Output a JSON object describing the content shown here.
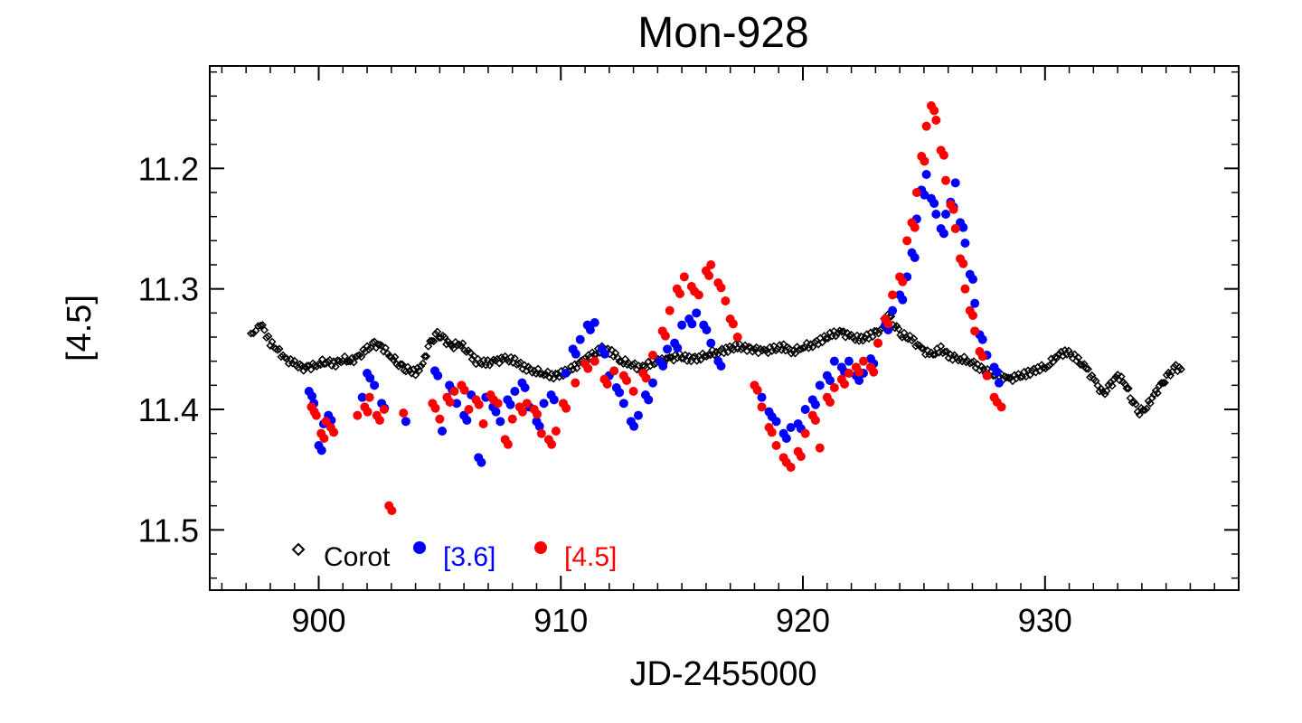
{
  "chart_data": {
    "type": "scatter",
    "title": "Mon-928",
    "xlabel": "JD-2455000",
    "ylabel": "[4.5]",
    "xlim": [
      895.5,
      938
    ],
    "ylim": [
      11.55,
      11.115
    ],
    "x_ticks": [
      900,
      910,
      920,
      930
    ],
    "x_tick_labels": [
      "900",
      "910",
      "920",
      "930"
    ],
    "y_ticks": [
      11.2,
      11.3,
      11.4,
      11.5
    ],
    "y_tick_labels": [
      "11.2",
      "11.3",
      "11.4",
      "11.5"
    ],
    "legend_position": "bottom-left",
    "colors": {
      "corot": "#000000",
      "ch1": "#0000ff",
      "ch2": "#ff0000"
    },
    "series": [
      {
        "name": "Corot",
        "marker": "diamond",
        "points": [
          [
            897.2,
            11.337
          ],
          [
            897.4,
            11.333
          ],
          [
            897.6,
            11.328
          ],
          [
            898.0,
            11.345
          ],
          [
            898.3,
            11.35
          ],
          [
            898.6,
            11.358
          ],
          [
            899.0,
            11.362
          ],
          [
            899.3,
            11.366
          ],
          [
            899.6,
            11.365
          ],
          [
            900.0,
            11.362
          ],
          [
            900.3,
            11.36
          ],
          [
            900.7,
            11.362
          ],
          [
            901.0,
            11.358
          ],
          [
            901.3,
            11.36
          ],
          [
            901.6,
            11.357
          ],
          [
            902.0,
            11.35
          ],
          [
            902.3,
            11.346
          ],
          [
            902.6,
            11.348
          ],
          [
            903.0,
            11.356
          ],
          [
            903.3,
            11.362
          ],
          [
            903.6,
            11.366
          ],
          [
            904.0,
            11.37
          ],
          [
            904.3,
            11.362
          ],
          [
            904.6,
            11.345
          ],
          [
            904.9,
            11.338
          ],
          [
            905.2,
            11.342
          ],
          [
            905.5,
            11.348
          ],
          [
            905.8,
            11.345
          ],
          [
            906.1,
            11.35
          ],
          [
            906.5,
            11.36
          ],
          [
            906.9,
            11.362
          ],
          [
            907.3,
            11.36
          ],
          [
            907.7,
            11.358
          ],
          [
            908.1,
            11.36
          ],
          [
            908.5,
            11.365
          ],
          [
            908.9,
            11.368
          ],
          [
            909.3,
            11.37
          ],
          [
            909.7,
            11.372
          ],
          [
            910.1,
            11.37
          ],
          [
            910.5,
            11.366
          ],
          [
            910.9,
            11.36
          ],
          [
            911.3,
            11.355
          ],
          [
            911.7,
            11.35
          ],
          [
            912.1,
            11.352
          ],
          [
            912.5,
            11.36
          ],
          [
            912.9,
            11.362
          ],
          [
            913.3,
            11.366
          ],
          [
            913.7,
            11.362
          ],
          [
            914.1,
            11.36
          ],
          [
            914.5,
            11.358
          ],
          [
            914.9,
            11.356
          ],
          [
            915.3,
            11.358
          ],
          [
            915.7,
            11.357
          ],
          [
            916.1,
            11.354
          ],
          [
            916.5,
            11.352
          ],
          [
            916.9,
            11.35
          ],
          [
            917.3,
            11.348
          ],
          [
            918.0,
            11.35
          ],
          [
            918.4,
            11.352
          ],
          [
            918.8,
            11.35
          ],
          [
            919.2,
            11.348
          ],
          [
            919.6,
            11.352
          ],
          [
            920.0,
            11.348
          ],
          [
            920.4,
            11.346
          ],
          [
            920.8,
            11.342
          ],
          [
            921.2,
            11.338
          ],
          [
            921.6,
            11.336
          ],
          [
            922.0,
            11.34
          ],
          [
            922.4,
            11.342
          ],
          [
            922.8,
            11.338
          ],
          [
            923.2,
            11.334
          ],
          [
            923.5,
            11.32
          ],
          [
            923.8,
            11.33
          ],
          [
            924.1,
            11.338
          ],
          [
            924.5,
            11.342
          ],
          [
            924.9,
            11.35
          ],
          [
            925.3,
            11.355
          ],
          [
            925.7,
            11.35
          ],
          [
            926.1,
            11.356
          ],
          [
            926.5,
            11.358
          ],
          [
            926.9,
            11.36
          ],
          [
            927.3,
            11.365
          ],
          [
            927.7,
            11.37
          ],
          [
            928.1,
            11.372
          ],
          [
            928.5,
            11.375
          ],
          [
            928.9,
            11.373
          ],
          [
            929.3,
            11.37
          ],
          [
            929.7,
            11.366
          ],
          [
            930.1,
            11.364
          ],
          [
            930.5,
            11.355
          ],
          [
            930.9,
            11.352
          ],
          [
            931.3,
            11.358
          ],
          [
            931.7,
            11.366
          ],
          [
            932.1,
            11.378
          ],
          [
            932.4,
            11.388
          ],
          [
            932.7,
            11.38
          ],
          [
            933.0,
            11.372
          ],
          [
            933.3,
            11.378
          ],
          [
            933.6,
            11.392
          ],
          [
            933.9,
            11.402
          ],
          [
            934.2,
            11.398
          ],
          [
            934.5,
            11.388
          ],
          [
            934.8,
            11.38
          ],
          [
            935.1,
            11.372
          ],
          [
            935.4,
            11.365
          ],
          [
            935.7,
            11.368
          ]
        ]
      },
      {
        "name": "[3.6]",
        "marker": "circle",
        "points": [
          [
            899.6,
            11.385
          ],
          [
            899.8,
            11.395
          ],
          [
            900.0,
            11.43
          ],
          [
            900.2,
            11.412
          ],
          [
            900.4,
            11.405
          ],
          [
            901.8,
            11.39
          ],
          [
            902.0,
            11.37
          ],
          [
            902.3,
            11.38
          ],
          [
            902.6,
            11.395
          ],
          [
            903.6,
            11.41
          ],
          [
            904.8,
            11.368
          ],
          [
            905.1,
            11.418
          ],
          [
            905.4,
            11.38
          ],
          [
            905.7,
            11.395
          ],
          [
            906.0,
            11.405
          ],
          [
            906.3,
            11.388
          ],
          [
            906.6,
            11.44
          ],
          [
            906.9,
            11.39
          ],
          [
            907.2,
            11.398
          ],
          [
            907.5,
            11.41
          ],
          [
            907.8,
            11.392
          ],
          [
            908.1,
            11.385
          ],
          [
            908.4,
            11.378
          ],
          [
            908.7,
            11.398
          ],
          [
            909.0,
            11.41
          ],
          [
            909.3,
            11.395
          ],
          [
            909.6,
            11.388
          ],
          [
            910.2,
            11.37
          ],
          [
            910.5,
            11.35
          ],
          [
            910.8,
            11.342
          ],
          [
            911.1,
            11.33
          ],
          [
            911.4,
            11.328
          ],
          [
            911.7,
            11.35
          ],
          [
            912.0,
            11.372
          ],
          [
            912.3,
            11.382
          ],
          [
            912.6,
            11.395
          ],
          [
            912.9,
            11.41
          ],
          [
            913.2,
            11.405
          ],
          [
            913.5,
            11.388
          ],
          [
            913.8,
            11.378
          ],
          [
            914.1,
            11.36
          ],
          [
            914.4,
            11.35
          ],
          [
            914.7,
            11.345
          ],
          [
            915.0,
            11.33
          ],
          [
            915.3,
            11.325
          ],
          [
            915.6,
            11.32
          ],
          [
            915.9,
            11.33
          ],
          [
            916.2,
            11.345
          ],
          [
            916.5,
            11.36
          ],
          [
            918.3,
            11.39
          ],
          [
            918.6,
            11.402
          ],
          [
            918.9,
            11.41
          ],
          [
            919.2,
            11.42
          ],
          [
            919.5,
            11.415
          ],
          [
            919.8,
            11.412
          ],
          [
            920.1,
            11.4
          ],
          [
            920.4,
            11.392
          ],
          [
            920.7,
            11.38
          ],
          [
            921.0,
            11.372
          ],
          [
            921.3,
            11.36
          ],
          [
            921.6,
            11.365
          ],
          [
            921.9,
            11.36
          ],
          [
            922.2,
            11.372
          ],
          [
            922.5,
            11.37
          ],
          [
            922.8,
            11.358
          ],
          [
            923.1,
            11.345
          ],
          [
            923.4,
            11.33
          ],
          [
            923.7,
            11.318
          ],
          [
            924.0,
            11.305
          ],
          [
            924.3,
            11.29
          ],
          [
            924.5,
            11.27
          ],
          [
            924.7,
            11.242
          ],
          [
            924.9,
            11.218
          ],
          [
            925.1,
            11.205
          ],
          [
            925.3,
            11.225
          ],
          [
            925.5,
            11.238
          ],
          [
            925.7,
            11.25
          ],
          [
            925.9,
            11.238
          ],
          [
            926.1,
            11.228
          ],
          [
            926.3,
            11.212
          ],
          [
            926.5,
            11.245
          ],
          [
            926.7,
            11.262
          ],
          [
            926.9,
            11.288
          ],
          [
            927.1,
            11.312
          ],
          [
            927.3,
            11.338
          ],
          [
            927.6,
            11.355
          ],
          [
            927.9,
            11.365
          ],
          [
            928.1,
            11.378
          ]
        ]
      },
      {
        "name": "[4.5]",
        "marker": "circle",
        "points": [
          [
            899.7,
            11.398
          ],
          [
            899.9,
            11.405
          ],
          [
            900.1,
            11.42
          ],
          [
            900.3,
            11.41
          ],
          [
            900.5,
            11.415
          ],
          [
            901.6,
            11.405
          ],
          [
            901.9,
            11.398
          ],
          [
            902.1,
            11.39
          ],
          [
            902.4,
            11.405
          ],
          [
            902.7,
            11.4
          ],
          [
            902.9,
            11.48
          ],
          [
            903.5,
            11.403
          ],
          [
            904.7,
            11.395
          ],
          [
            905.0,
            11.408
          ],
          [
            905.3,
            11.39
          ],
          [
            905.6,
            11.385
          ],
          [
            905.9,
            11.38
          ],
          [
            906.2,
            11.4
          ],
          [
            906.5,
            11.392
          ],
          [
            906.8,
            11.412
          ],
          [
            907.1,
            11.388
          ],
          [
            907.4,
            11.395
          ],
          [
            907.7,
            11.425
          ],
          [
            908.0,
            11.408
          ],
          [
            908.3,
            11.398
          ],
          [
            908.6,
            11.395
          ],
          [
            908.9,
            11.4
          ],
          [
            909.2,
            11.42
          ],
          [
            909.5,
            11.425
          ],
          [
            909.8,
            11.418
          ],
          [
            910.1,
            11.395
          ],
          [
            910.6,
            11.378
          ],
          [
            911.0,
            11.362
          ],
          [
            911.4,
            11.36
          ],
          [
            911.8,
            11.375
          ],
          [
            912.2,
            11.368
          ],
          [
            912.6,
            11.372
          ],
          [
            913.0,
            11.385
          ],
          [
            913.4,
            11.37
          ],
          [
            913.8,
            11.355
          ],
          [
            914.2,
            11.335
          ],
          [
            914.5,
            11.318
          ],
          [
            914.8,
            11.3
          ],
          [
            915.1,
            11.29
          ],
          [
            915.4,
            11.298
          ],
          [
            915.7,
            11.305
          ],
          [
            916.0,
            11.285
          ],
          [
            916.2,
            11.28
          ],
          [
            916.5,
            11.295
          ],
          [
            916.8,
            11.31
          ],
          [
            917.0,
            11.325
          ],
          [
            917.3,
            11.34
          ],
          [
            918.0,
            11.38
          ],
          [
            918.3,
            11.398
          ],
          [
            918.6,
            11.415
          ],
          [
            918.9,
            11.43
          ],
          [
            919.2,
            11.44
          ],
          [
            919.5,
            11.448
          ],
          [
            919.8,
            11.435
          ],
          [
            920.1,
            11.42
          ],
          [
            920.4,
            11.405
          ],
          [
            920.7,
            11.432
          ],
          [
            921.0,
            11.39
          ],
          [
            921.3,
            11.382
          ],
          [
            921.6,
            11.375
          ],
          [
            921.9,
            11.37
          ],
          [
            922.2,
            11.365
          ],
          [
            922.5,
            11.36
          ],
          [
            922.8,
            11.365
          ],
          [
            923.1,
            11.345
          ],
          [
            923.4,
            11.325
          ],
          [
            923.7,
            11.305
          ],
          [
            924.0,
            11.29
          ],
          [
            924.3,
            11.26
          ],
          [
            924.5,
            11.245
          ],
          [
            924.7,
            11.22
          ],
          [
            924.9,
            11.19
          ],
          [
            925.1,
            11.165
          ],
          [
            925.3,
            11.148
          ],
          [
            925.5,
            11.16
          ],
          [
            925.7,
            11.185
          ],
          [
            925.9,
            11.21
          ],
          [
            926.1,
            11.23
          ],
          [
            926.3,
            11.25
          ],
          [
            926.5,
            11.275
          ],
          [
            926.7,
            11.3
          ],
          [
            926.9,
            11.318
          ],
          [
            927.1,
            11.335
          ],
          [
            927.3,
            11.352
          ],
          [
            927.6,
            11.372
          ],
          [
            927.9,
            11.39
          ],
          [
            928.2,
            11.398
          ]
        ]
      }
    ]
  }
}
